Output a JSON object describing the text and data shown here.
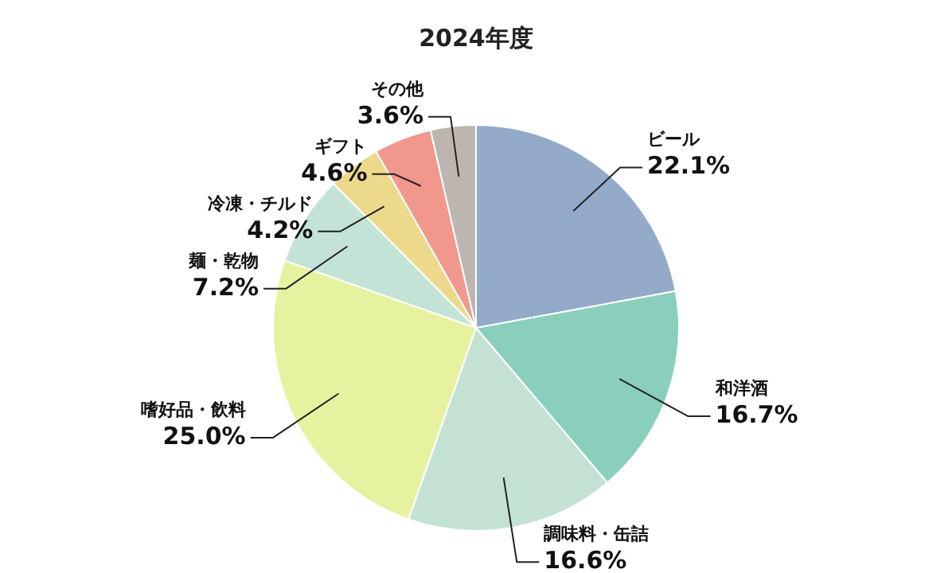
{
  "chart_data": {
    "type": "pie",
    "title": "2024年度",
    "categories": [
      "ビール",
      "和洋酒",
      "調味料・缶詰",
      "嗜好品・飲料",
      "麺・乾物",
      "冷凍・チルド",
      "ギフト",
      "その他"
    ],
    "values": [
      22.1,
      16.7,
      16.6,
      25.0,
      7.2,
      4.2,
      4.6,
      3.6
    ],
    "value_labels": [
      "22.1%",
      "16.7%",
      "16.6%",
      "25.0%",
      "7.2%",
      "4.2%",
      "4.6%",
      "3.6%"
    ],
    "colors": [
      "#93abc9",
      "#8acfbd",
      "#c4e2d4",
      "#e7f2a0",
      "#c3e3d6",
      "#ecd98c",
      "#f1978c",
      "#bdb6b0"
    ]
  }
}
